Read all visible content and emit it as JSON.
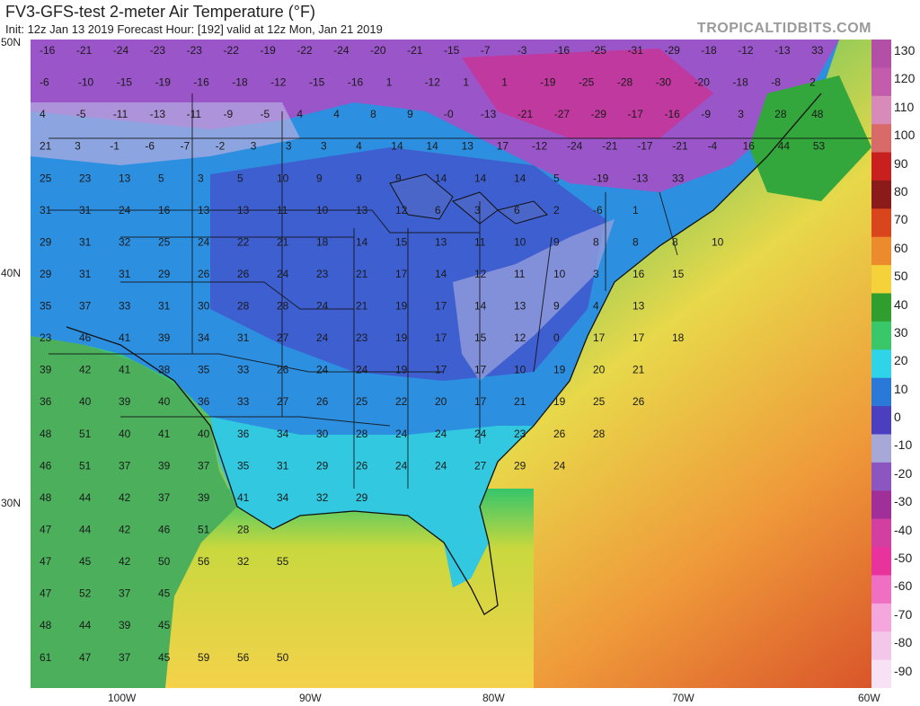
{
  "header": {
    "title": "FV3-GFS-test 2-meter Air Temperature (°F)",
    "subtitle": "Init: 12z Jan 13 2019   Forecast Hour: [192]   valid at 12z Mon, Jan 21 2019",
    "brand": "TROPICALTIDBITS.COM"
  },
  "lat_labels": [
    "50N",
    "40N",
    "30N"
  ],
  "lon_labels": [
    "100W",
    "90W",
    "80W",
    "70W",
    "60W"
  ],
  "colorbar": {
    "labels": [
      "130",
      "120",
      "110",
      "100",
      "90",
      "80",
      "70",
      "60",
      "50",
      "40",
      "30",
      "20",
      "10",
      "0",
      "-10",
      "-20",
      "-30",
      "-40",
      "-50",
      "-60",
      "-70",
      "-80",
      "-90"
    ],
    "colors": {
      "130": "#b34fa6",
      "120": "#c45cae",
      "110": "#d88ab8",
      "100": "#d86a6a",
      "90": "#c81f1f",
      "80": "#8b1a1a",
      "70": "#d9461d",
      "60": "#ec8a2e",
      "50": "#f5d13a",
      "40": "#2f9e2f",
      "30": "#39c76a",
      "20": "#2fd4e8",
      "10": "#2a78d8",
      "0": "#4b3fbf",
      "-10": "#a8a8d8",
      "-20": "#8c56c0",
      "-30": "#a12f9a",
      "-40": "#d23fa0",
      "-50": "#e8339c",
      "-60": "#ef6fc3",
      "-70": "#f5a6dc",
      "-80": "#f3c7ea",
      "-90": "#f8e0f5"
    }
  },
  "temperature_labels": [
    [
      "-16",
      "-21",
      "-24",
      "-23",
      "-23",
      "-22",
      "-19",
      "-22",
      "-24",
      "-20",
      "-21",
      "-15",
      "-7",
      "-3",
      "-16",
      "-25",
      "-31",
      "-29",
      "-18",
      "-12",
      "-13",
      "33"
    ],
    [
      "-6",
      "-10",
      "-15",
      "-19",
      "-16",
      "-18",
      "-12",
      "-15",
      "-16",
      "1",
      "-12",
      "1",
      "1",
      "-19",
      "-25",
      "-28",
      "-30",
      "-20",
      "-18",
      "-8",
      "2"
    ],
    [
      "4",
      "-5",
      "-11",
      "-13",
      "-11",
      "-9",
      "-5",
      "4",
      "4",
      "8",
      "9",
      "-0",
      "-13",
      "-21",
      "-27",
      "-29",
      "-17",
      "-16",
      "-9",
      "3",
      "28",
      "48"
    ],
    [
      "21",
      "3",
      "-1",
      "-6",
      "-7",
      "-2",
      "3",
      "3",
      "3",
      "4",
      "14",
      "14",
      "13",
      "17",
      "-12",
      "-24",
      "-21",
      "-17",
      "-21",
      "-4",
      "16",
      "44",
      "53"
    ],
    [
      "25",
      "23",
      "13",
      "5",
      "3",
      "5",
      "10",
      "9",
      "9",
      "9",
      "14",
      "14",
      "14",
      "5",
      "-19",
      "-13",
      "33"
    ],
    [
      "31",
      "31",
      "24",
      "16",
      "13",
      "13",
      "11",
      "10",
      "13",
      "12",
      "6",
      "3",
      "6",
      "2",
      "-6",
      "1"
    ],
    [
      "29",
      "31",
      "32",
      "25",
      "24",
      "22",
      "21",
      "18",
      "14",
      "15",
      "13",
      "11",
      "10",
      "9",
      "8",
      "8",
      "8",
      "10"
    ],
    [
      "29",
      "31",
      "31",
      "29",
      "26",
      "26",
      "24",
      "23",
      "21",
      "17",
      "14",
      "12",
      "11",
      "10",
      "3",
      "16",
      "15"
    ],
    [
      "35",
      "37",
      "33",
      "31",
      "30",
      "28",
      "28",
      "24",
      "21",
      "19",
      "17",
      "14",
      "13",
      "9",
      "4",
      "13"
    ],
    [
      "23",
      "46",
      "41",
      "39",
      "34",
      "31",
      "27",
      "24",
      "23",
      "19",
      "17",
      "15",
      "12",
      "0",
      "17",
      "17",
      "18"
    ],
    [
      "39",
      "42",
      "41",
      "38",
      "35",
      "33",
      "26",
      "24",
      "24",
      "19",
      "17",
      "17",
      "10",
      "19",
      "20",
      "21"
    ],
    [
      "36",
      "40",
      "39",
      "40",
      "36",
      "33",
      "27",
      "26",
      "25",
      "22",
      "20",
      "17",
      "21",
      "19",
      "25",
      "26"
    ],
    [
      "48",
      "51",
      "40",
      "41",
      "40",
      "36",
      "34",
      "30",
      "28",
      "24",
      "24",
      "24",
      "23",
      "26",
      "28"
    ],
    [
      "46",
      "51",
      "37",
      "39",
      "37",
      "35",
      "31",
      "29",
      "26",
      "24",
      "24",
      "27",
      "29",
      "24"
    ],
    [
      "48",
      "44",
      "42",
      "37",
      "39",
      "41",
      "34",
      "32",
      "29"
    ],
    [
      "47",
      "44",
      "42",
      "46",
      "51",
      "28"
    ],
    [
      "47",
      "45",
      "42",
      "50",
      "56",
      "32",
      "55"
    ],
    [
      "47",
      "52",
      "37",
      "45"
    ],
    [
      "48",
      "44",
      "39",
      "45"
    ],
    [
      "61",
      "47",
      "37",
      "45",
      "59",
      "56",
      "50"
    ]
  ]
}
